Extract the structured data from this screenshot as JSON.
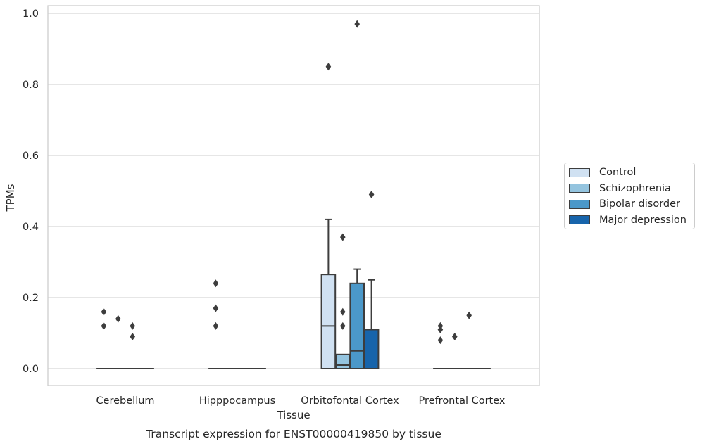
{
  "chart_data": {
    "type": "box",
    "title": "Transcript expression for ENST00000419850 by tissue",
    "xlabel": "Tissue",
    "ylabel": "TPMs",
    "ylim": [
      -0.045,
      1.02
    ],
    "yticks": [
      0.0,
      0.2,
      0.4,
      0.6,
      0.8,
      1.0
    ],
    "ytick_labels": [
      "0.0",
      "0.2",
      "0.4",
      "0.6",
      "0.8",
      "1.0"
    ],
    "grid": "horizontal",
    "legend_position": "right",
    "categories": [
      "Cerebellum",
      "Hipppocampus",
      "Orbitofontal Cortex",
      "Prefrontal Cortex"
    ],
    "series": [
      {
        "name": "Control",
        "color": "#d0e1f2",
        "boxes": [
          {
            "q1": 0,
            "median": 0,
            "q3": 0,
            "whisker_low": 0,
            "whisker_high": 0,
            "outliers": [
              0.16,
              0.12
            ]
          },
          {
            "q1": 0,
            "median": 0,
            "q3": 0,
            "whisker_low": 0,
            "whisker_high": 0,
            "outliers": [
              0.24,
              0.17,
              0.12
            ]
          },
          {
            "q1": 0,
            "median": 0.12,
            "q3": 0.265,
            "whisker_low": 0,
            "whisker_high": 0.42,
            "outliers": [
              0.85
            ]
          },
          {
            "q1": 0,
            "median": 0,
            "q3": 0,
            "whisker_low": 0,
            "whisker_high": 0,
            "outliers": [
              0.12,
              0.11,
              0.08
            ]
          }
        ]
      },
      {
        "name": "Schizophrenia",
        "color": "#94c4df",
        "boxes": [
          {
            "q1": 0,
            "median": 0,
            "q3": 0,
            "whisker_low": 0,
            "whisker_high": 0,
            "outliers": [
              0.14
            ]
          },
          {
            "q1": 0,
            "median": 0,
            "q3": 0,
            "whisker_low": 0,
            "whisker_high": 0,
            "outliers": []
          },
          {
            "q1": 0,
            "median": 0.01,
            "q3": 0.04,
            "whisker_low": 0,
            "whisker_high": 0.04,
            "outliers": [
              0.37,
              0.16,
              0.12
            ]
          },
          {
            "q1": 0,
            "median": 0,
            "q3": 0,
            "whisker_low": 0,
            "whisker_high": 0,
            "outliers": [
              0.09
            ]
          }
        ]
      },
      {
        "name": "Bipolar disorder",
        "color": "#4b98c9",
        "boxes": [
          {
            "q1": 0,
            "median": 0,
            "q3": 0,
            "whisker_low": 0,
            "whisker_high": 0,
            "outliers": [
              0.12,
              0.09
            ]
          },
          {
            "q1": 0,
            "median": 0,
            "q3": 0,
            "whisker_low": 0,
            "whisker_high": 0,
            "outliers": []
          },
          {
            "q1": 0,
            "median": 0.05,
            "q3": 0.24,
            "whisker_low": 0,
            "whisker_high": 0.28,
            "outliers": [
              0.97
            ]
          },
          {
            "q1": 0,
            "median": 0,
            "q3": 0,
            "whisker_low": 0,
            "whisker_high": 0,
            "outliers": [
              0.15
            ]
          }
        ]
      },
      {
        "name": "Major depression",
        "color": "#1764ab",
        "boxes": [
          {
            "q1": 0,
            "median": 0,
            "q3": 0,
            "whisker_low": 0,
            "whisker_high": 0,
            "outliers": []
          },
          {
            "q1": 0,
            "median": 0,
            "q3": 0,
            "whisker_low": 0,
            "whisker_high": 0,
            "outliers": []
          },
          {
            "q1": 0,
            "median": 0.11,
            "q3": 0.11,
            "whisker_low": 0,
            "whisker_high": 0.25,
            "outliers": [
              0.49
            ]
          },
          {
            "q1": 0,
            "median": 0,
            "q3": 0,
            "whisker_low": 0,
            "whisker_high": 0,
            "outliers": []
          }
        ]
      }
    ]
  }
}
